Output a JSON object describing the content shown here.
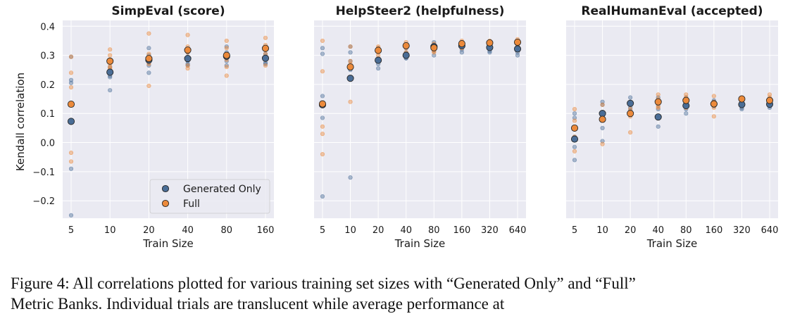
{
  "colors": {
    "generated": "#4a6d96",
    "full": "#ec8a3b",
    "panel_bg": "#eaeaf2",
    "grid": "#ffffff"
  },
  "chart_data": [
    {
      "type": "scatter",
      "title": "SimpEval (score)",
      "xlabel": "Train Size",
      "ylabel": "Kendall correlation",
      "categories": [
        "5",
        "10",
        "20",
        "40",
        "80",
        "160"
      ],
      "ylim": [
        -0.26,
        0.42
      ],
      "yticks": [
        "0.4",
        "0.3",
        "0.2",
        "0.1",
        "0.0",
        "−0.1",
        "−0.2"
      ],
      "ytick_values": [
        0.4,
        0.3,
        0.2,
        0.1,
        0.0,
        -0.1,
        -0.2
      ],
      "legend": {
        "position": "lower-right",
        "entries": [
          "Generated Only",
          "Full"
        ]
      },
      "series": [
        {
          "name": "Generated Only",
          "mean": [
            0.073,
            0.242,
            0.284,
            0.289,
            0.297,
            0.29
          ],
          "trials": [
            [
              0.295,
              0.215,
              0.205,
              -0.09,
              -0.25
            ],
            [
              0.26,
              0.25,
              0.23,
              0.225,
              0.18
            ],
            [
              0.325,
              0.3,
              0.275,
              0.265,
              0.24
            ],
            [
              0.31,
              0.295,
              0.28,
              0.27,
              0.265
            ],
            [
              0.33,
              0.31,
              0.29,
              0.28,
              0.265
            ],
            [
              0.32,
              0.305,
              0.285,
              0.275,
              0.27
            ]
          ]
        },
        {
          "name": "Full",
          "mean": [
            0.132,
            0.28,
            0.289,
            0.318,
            0.3,
            0.324
          ],
          "trials": [
            [
              0.295,
              0.24,
              0.19,
              -0.035,
              -0.065
            ],
            [
              0.32,
              0.3,
              0.27,
              0.26,
              0.255
            ],
            [
              0.375,
              0.305,
              0.28,
              0.27,
              0.195
            ],
            [
              0.37,
              0.33,
              0.31,
              0.265,
              0.255
            ],
            [
              0.35,
              0.325,
              0.285,
              0.26,
              0.23
            ],
            [
              0.36,
              0.335,
              0.305,
              0.285,
              0.265
            ]
          ]
        }
      ]
    },
    {
      "type": "scatter",
      "title": "HelpSteer2 (helpfulness)",
      "xlabel": "Train Size",
      "ylabel": "",
      "categories": [
        "5",
        "10",
        "20",
        "40",
        "80",
        "160",
        "320",
        "640"
      ],
      "ylim": [
        -0.26,
        0.42
      ],
      "series": [
        {
          "name": "Generated Only",
          "mean": [
            0.13,
            0.221,
            0.283,
            0.3,
            0.33,
            0.333,
            0.327,
            0.322
          ],
          "trials": [
            [
              0.325,
              0.305,
              0.16,
              0.085,
              -0.185
            ],
            [
              0.33,
              0.31,
              0.28,
              0.25,
              -0.12
            ],
            [
              0.325,
              0.315,
              0.29,
              0.27,
              0.255
            ],
            [
              0.325,
              0.31,
              0.295,
              0.29,
              0.29
            ],
            [
              0.345,
              0.335,
              0.325,
              0.315,
              0.3
            ],
            [
              0.345,
              0.34,
              0.33,
              0.32,
              0.31
            ],
            [
              0.345,
              0.335,
              0.325,
              0.315,
              0.31
            ],
            [
              0.345,
              0.33,
              0.32,
              0.31,
              0.3
            ]
          ]
        },
        {
          "name": "Full",
          "mean": [
            0.133,
            0.26,
            0.317,
            0.333,
            0.326,
            0.34,
            0.343,
            0.345
          ],
          "trials": [
            [
              0.35,
              0.245,
              0.055,
              0.03,
              -0.04
            ],
            [
              0.33,
              0.28,
              0.27,
              0.255,
              0.14
            ],
            [
              0.33,
              0.325,
              0.31,
              0.3,
              0.28
            ],
            [
              0.345,
              0.335,
              0.325,
              0.31,
              0.3
            ],
            [
              0.34,
              0.33,
              0.325,
              0.315,
              0.31
            ],
            [
              0.35,
              0.345,
              0.335,
              0.33,
              0.325
            ],
            [
              0.35,
              0.345,
              0.34,
              0.335,
              0.325
            ],
            [
              0.355,
              0.35,
              0.34,
              0.335,
              0.33
            ]
          ]
        }
      ]
    },
    {
      "type": "scatter",
      "title": "RealHumanEval (accepted)",
      "xlabel": "Train Size",
      "ylabel": "",
      "categories": [
        "5",
        "10",
        "20",
        "40",
        "80",
        "160",
        "320",
        "640"
      ],
      "ylim": [
        -0.26,
        0.42
      ],
      "series": [
        {
          "name": "Generated Only",
          "mean": [
            0.012,
            0.1,
            0.135,
            0.088,
            0.127,
            0.133,
            0.131,
            0.132
          ],
          "trials": [
            [
              0.1,
              0.085,
              0.02,
              -0.015,
              -0.06
            ],
            [
              0.14,
              0.13,
              0.105,
              0.05,
              0.005
            ],
            [
              0.155,
              0.14,
              0.13,
              0.12,
              0.11
            ],
            [
              0.155,
              0.13,
              0.115,
              0.085,
              0.055
            ],
            [
              0.155,
              0.145,
              0.13,
              0.115,
              0.1
            ],
            [
              0.145,
              0.14,
              0.135,
              0.13,
              0.125
            ],
            [
              0.145,
              0.14,
              0.13,
              0.12,
              0.115
            ],
            [
              0.15,
              0.14,
              0.135,
              0.125,
              0.12
            ]
          ]
        },
        {
          "name": "Full",
          "mean": [
            0.05,
            0.08,
            0.1,
            0.14,
            0.145,
            0.133,
            0.15,
            0.145
          ],
          "trials": [
            [
              0.115,
              0.075,
              0.045,
              0.02,
              -0.03
            ],
            [
              0.13,
              0.1,
              0.09,
              0.075,
              -0.005
            ],
            [
              0.13,
              0.115,
              0.1,
              0.09,
              0.035
            ],
            [
              0.165,
              0.15,
              0.135,
              0.125,
              0.12
            ],
            [
              0.165,
              0.155,
              0.145,
              0.135,
              0.12
            ],
            [
              0.16,
              0.14,
              0.13,
              0.12,
              0.09
            ],
            [
              0.155,
              0.15,
              0.145,
              0.14,
              0.13
            ],
            [
              0.165,
              0.155,
              0.15,
              0.145,
              0.135
            ]
          ]
        }
      ]
    }
  ],
  "caption": {
    "line1": "Figure 4:  All correlations plotted for various training set sizes with “Generated Only” and “Full”",
    "line2": "Metric Banks. Individual trials are translucent while average performance at"
  }
}
